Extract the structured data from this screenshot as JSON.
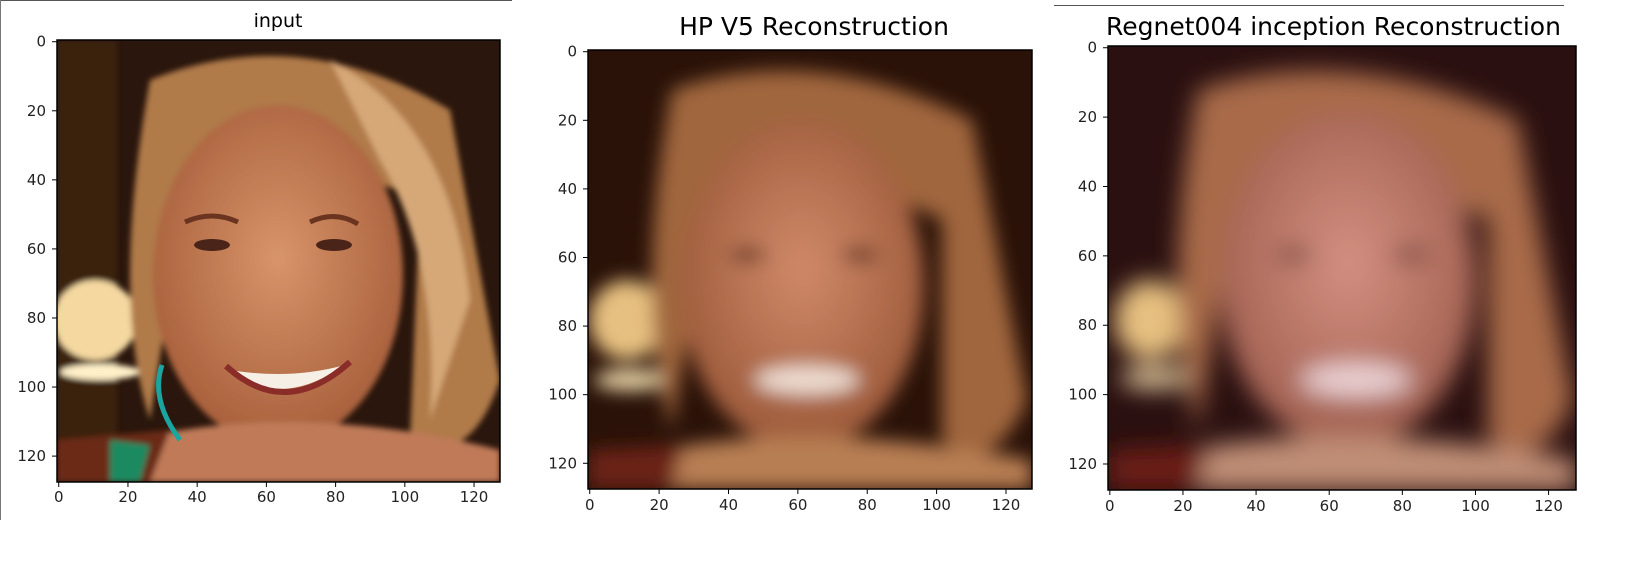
{
  "panels": [
    {
      "title": "input",
      "x_ticks": [
        "0",
        "20",
        "40",
        "60",
        "80",
        "100",
        "120"
      ],
      "y_ticks": [
        "0",
        "20",
        "40",
        "60",
        "80",
        "100",
        "120"
      ],
      "axis_range": [
        0,
        128
      ],
      "image": "sharp photo of a smiling woman with long blonde-brown hair resting her chin on her hands",
      "colors": {
        "background": "#2a160c",
        "hair": "#b07a48",
        "skin": "#c8845c",
        "light": "#f4d8a0",
        "earring": "#1aa6a0"
      }
    },
    {
      "title": "HP  V5 Reconstruction",
      "x_ticks": [
        "0",
        "20",
        "40",
        "60",
        "80",
        "100",
        "120"
      ],
      "y_ticks": [
        "0",
        "20",
        "40",
        "60",
        "80",
        "100",
        "120"
      ],
      "axis_range": [
        0,
        128
      ],
      "image": "blurred reconstruction of the same face",
      "colors": {
        "background": "#2a1208",
        "hair": "#a0663e",
        "skin": "#c07e5e",
        "light": "#e6c080"
      }
    },
    {
      "title": "Regnet004 inception Reconstruction",
      "x_ticks": [
        "0",
        "20",
        "40",
        "60",
        "80",
        "100",
        "120"
      ],
      "y_ticks": [
        "0",
        "20",
        "40",
        "60",
        "80",
        "100",
        "120"
      ],
      "axis_range": [
        0,
        128
      ],
      "image": "more blurred reconstruction of the same face",
      "colors": {
        "background": "#2a1010",
        "hair": "#a86a48",
        "skin": "#c88470",
        "light": "#e6c080"
      }
    }
  ]
}
